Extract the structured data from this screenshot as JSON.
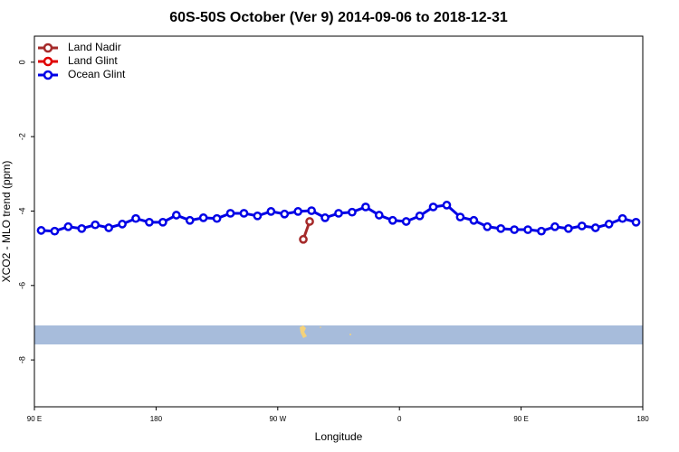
{
  "chart_data": {
    "type": "line",
    "title": "60S-50S October (Ver 9)   2014-09-06 to 2018-12-31",
    "x_label": "Longitude",
    "y_label": "XCO2 - MLO trend (ppm)",
    "xlim": [
      90,
      540
    ],
    "xticks": [
      {
        "value": 90,
        "label": "90 E"
      },
      {
        "value": 180,
        "label": "180"
      },
      {
        "value": 270,
        "label": "90 W"
      },
      {
        "value": 360,
        "label": "0"
      },
      {
        "value": 450,
        "label": "90 E"
      },
      {
        "value": 540,
        "label": "180"
      }
    ],
    "ylim": [
      -9.26,
      0.7
    ],
    "yticks": [
      0,
      -2,
      -4,
      -6,
      -8
    ],
    "legend": "top-left",
    "series": [
      {
        "name": "Land Nadir",
        "color": "#a52a2a",
        "x": [
          288.9,
          293.6
        ],
        "values": [
          -4.76,
          -4.28
        ]
      },
      {
        "name": "Land Glint",
        "color": "#e00000",
        "x": [],
        "values": []
      },
      {
        "name": "Ocean Glint",
        "color": "#0000e6",
        "x": [
          95,
          105,
          115,
          125,
          135,
          145,
          155,
          165,
          175,
          185,
          195,
          205,
          215,
          225,
          235,
          245,
          255,
          265,
          275,
          285,
          295,
          305,
          315,
          325,
          335,
          345,
          355,
          365,
          375,
          385,
          395,
          405,
          415,
          425,
          435,
          445,
          455,
          465,
          475,
          485,
          495,
          505,
          515,
          525,
          535
        ],
        "values": [
          -4.52,
          -4.54,
          -4.42,
          -4.47,
          -4.37,
          -4.45,
          -4.35,
          -4.2,
          -4.3,
          -4.3,
          -4.11,
          -4.25,
          -4.18,
          -4.2,
          -4.06,
          -4.06,
          -4.13,
          -4.01,
          -4.08,
          -4.01,
          -3.99,
          -4.18,
          -4.06,
          -4.03,
          -3.89,
          -4.11,
          -4.25,
          -4.28,
          -4.13,
          -3.89,
          -3.84,
          -4.16,
          -4.25,
          -4.42,
          -4.47,
          -4.5,
          -4.5,
          -4.54,
          -4.42,
          -4.47,
          -4.4,
          -4.45,
          -4.35,
          -4.2,
          -4.3
        ]
      }
    ]
  }
}
